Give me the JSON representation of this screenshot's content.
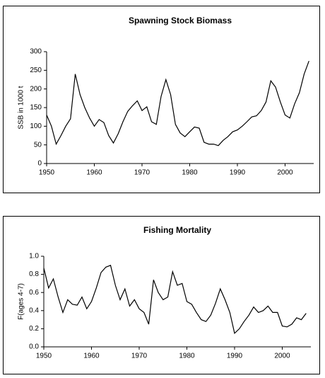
{
  "chart_data": [
    {
      "type": "line",
      "title": "Spawning Stock Biomass",
      "y_label": "SSB in 1000 t",
      "x": [
        1950,
        1951,
        1952,
        1953,
        1954,
        1955,
        1956,
        1957,
        1958,
        1959,
        1960,
        1961,
        1962,
        1963,
        1964,
        1965,
        1966,
        1967,
        1968,
        1969,
        1970,
        1971,
        1972,
        1973,
        1974,
        1975,
        1976,
        1977,
        1978,
        1979,
        1980,
        1981,
        1982,
        1983,
        1984,
        1985,
        1986,
        1987,
        1988,
        1989,
        1990,
        1991,
        1992,
        1993,
        1994,
        1995,
        1996,
        1997,
        1998,
        1999,
        2000,
        2001,
        2002,
        2003,
        2004,
        2005
      ],
      "values": [
        130,
        100,
        52,
        75,
        100,
        120,
        240,
        185,
        150,
        122,
        100,
        118,
        110,
        75,
        55,
        80,
        112,
        140,
        155,
        168,
        142,
        152,
        112,
        105,
        180,
        225,
        185,
        105,
        82,
        72,
        85,
        98,
        95,
        57,
        52,
        52,
        48,
        62,
        72,
        85,
        90,
        100,
        112,
        125,
        128,
        142,
        165,
        222,
        205,
        165,
        130,
        122,
        160,
        190,
        240,
        275
      ],
      "color": "#000000",
      "xlim": [
        1950,
        2006
      ],
      "xticks": [
        1950,
        1960,
        1970,
        1980,
        1990,
        2000
      ],
      "ylim": [
        0,
        300
      ],
      "yticks": [
        0,
        50,
        100,
        150,
        200,
        250,
        300
      ],
      "grid": false
    },
    {
      "type": "line",
      "title": "Fishing Mortality",
      "y_label": "F(ages 4-7)",
      "x": [
        1950,
        1951,
        1952,
        1953,
        1954,
        1955,
        1956,
        1957,
        1958,
        1959,
        1960,
        1961,
        1962,
        1963,
        1964,
        1965,
        1966,
        1967,
        1968,
        1969,
        1970,
        1971,
        1972,
        1973,
        1974,
        1975,
        1976,
        1977,
        1978,
        1979,
        1980,
        1981,
        1982,
        1983,
        1984,
        1985,
        1986,
        1987,
        1988,
        1989,
        1990,
        1991,
        1992,
        1993,
        1994,
        1995,
        1996,
        1997,
        1998,
        1999,
        2000,
        2001,
        2002,
        2003,
        2004,
        2005
      ],
      "values": [
        0.87,
        0.65,
        0.75,
        0.55,
        0.38,
        0.52,
        0.47,
        0.46,
        0.55,
        0.42,
        0.5,
        0.65,
        0.82,
        0.88,
        0.9,
        0.68,
        0.52,
        0.64,
        0.45,
        0.52,
        0.42,
        0.38,
        0.25,
        0.74,
        0.6,
        0.52,
        0.55,
        0.83,
        0.68,
        0.7,
        0.5,
        0.47,
        0.38,
        0.3,
        0.28,
        0.35,
        0.48,
        0.64,
        0.52,
        0.38,
        0.15,
        0.2,
        0.28,
        0.35,
        0.44,
        0.38,
        0.4,
        0.45,
        0.38,
        0.38,
        0.23,
        0.22,
        0.25,
        0.32,
        0.3,
        0.37
      ],
      "color": "#000000",
      "xlim": [
        1950,
        2006
      ],
      "xticks": [
        1950,
        1960,
        1970,
        1980,
        1990,
        2000
      ],
      "ylim": [
        0,
        1
      ],
      "yticks": [
        {
          "value": 0,
          "label": "0.0"
        },
        0.2,
        0.4,
        0.6,
        0.8,
        {
          "value": 1,
          "label": "1.0"
        }
      ],
      "grid": false
    }
  ]
}
